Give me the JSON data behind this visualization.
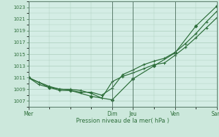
{
  "title": "",
  "xlabel": "Pression niveau de la mer( hPa )",
  "ylabel": "",
  "bg_color": "#cce8dc",
  "plot_bg_color": "#d4ede5",
  "grid_color": "#aaccbb",
  "line_color": "#2d6e3a",
  "marker_color": "#2d6e3a",
  "ylim": [
    1006,
    1024
  ],
  "yticks": [
    1007,
    1009,
    1011,
    1013,
    1015,
    1017,
    1019,
    1021,
    1023
  ],
  "x_day_labels": [
    "Mer",
    "Dim",
    "Jeu",
    "Ven",
    "Sam"
  ],
  "x_day_positions": [
    0,
    96,
    120,
    168,
    216
  ],
  "xlim": [
    0,
    216
  ],
  "line1_x": [
    0,
    12,
    24,
    36,
    48,
    60,
    72,
    84,
    96,
    108,
    120,
    132,
    144,
    156,
    168,
    180,
    192,
    204,
    216
  ],
  "line1_y": [
    1011.0,
    1010.2,
    1009.5,
    1009.0,
    1009.0,
    1008.8,
    1008.3,
    1007.5,
    1010.3,
    1011.2,
    1011.8,
    1012.5,
    1013.2,
    1013.5,
    1014.8,
    1016.2,
    1017.8,
    1019.5,
    1021.2
  ],
  "line2_x": [
    0,
    12,
    24,
    36,
    48,
    60,
    72,
    84,
    96,
    108,
    120,
    132,
    144,
    156,
    168,
    180,
    192,
    204,
    216
  ],
  "line2_y": [
    1011.0,
    1009.8,
    1009.3,
    1008.8,
    1008.8,
    1008.5,
    1008.5,
    1008.0,
    1009.2,
    1011.5,
    1012.3,
    1013.2,
    1013.8,
    1014.3,
    1015.3,
    1016.8,
    1018.5,
    1020.5,
    1022.3
  ],
  "line3_x": [
    0,
    24,
    48,
    72,
    96,
    120,
    144,
    168,
    192,
    216
  ],
  "line3_y": [
    1011.0,
    1009.3,
    1008.8,
    1007.8,
    1007.2,
    1010.8,
    1013.0,
    1015.2,
    1019.8,
    1023.2
  ],
  "figsize": [
    3.2,
    2.0
  ],
  "dpi": 100
}
